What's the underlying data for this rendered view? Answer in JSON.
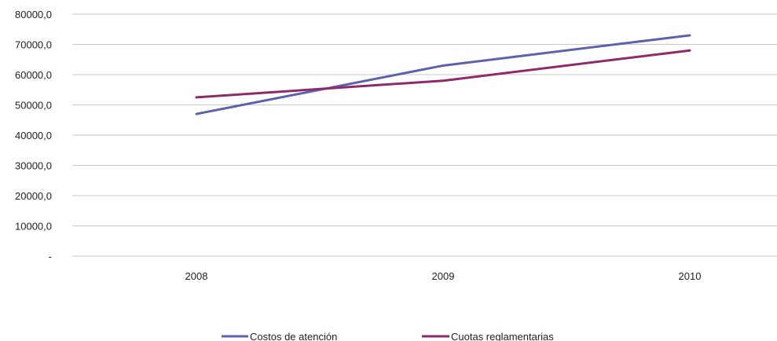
{
  "chart_data": {
    "type": "line",
    "title": "",
    "xlabel": "",
    "ylabel": "",
    "categories": [
      "2008",
      "2009",
      "2010"
    ],
    "ylim": [
      0,
      80000
    ],
    "y_ticks": [
      {
        "value": 0,
        "label": "-"
      },
      {
        "value": 10000,
        "label": "10000,0"
      },
      {
        "value": 20000,
        "label": "20000,0"
      },
      {
        "value": 30000,
        "label": "30000,0"
      },
      {
        "value": 40000,
        "label": "40000,0"
      },
      {
        "value": 50000,
        "label": "50000,0"
      },
      {
        "value": 60000,
        "label": "60000,0"
      },
      {
        "value": 70000,
        "label": "70000,0"
      },
      {
        "value": 80000,
        "label": "80000,0"
      }
    ],
    "grid": true,
    "legend_position": "bottom",
    "series": [
      {
        "name": "Costos de atención",
        "values": [
          47000,
          63000,
          73000
        ],
        "color": "#5b62aa"
      },
      {
        "name": "Cuotas reglamentarias",
        "values": [
          52500,
          58000,
          68000
        ],
        "color": "#8e2a6a"
      }
    ],
    "gridline_color": "#c8c8c8"
  }
}
